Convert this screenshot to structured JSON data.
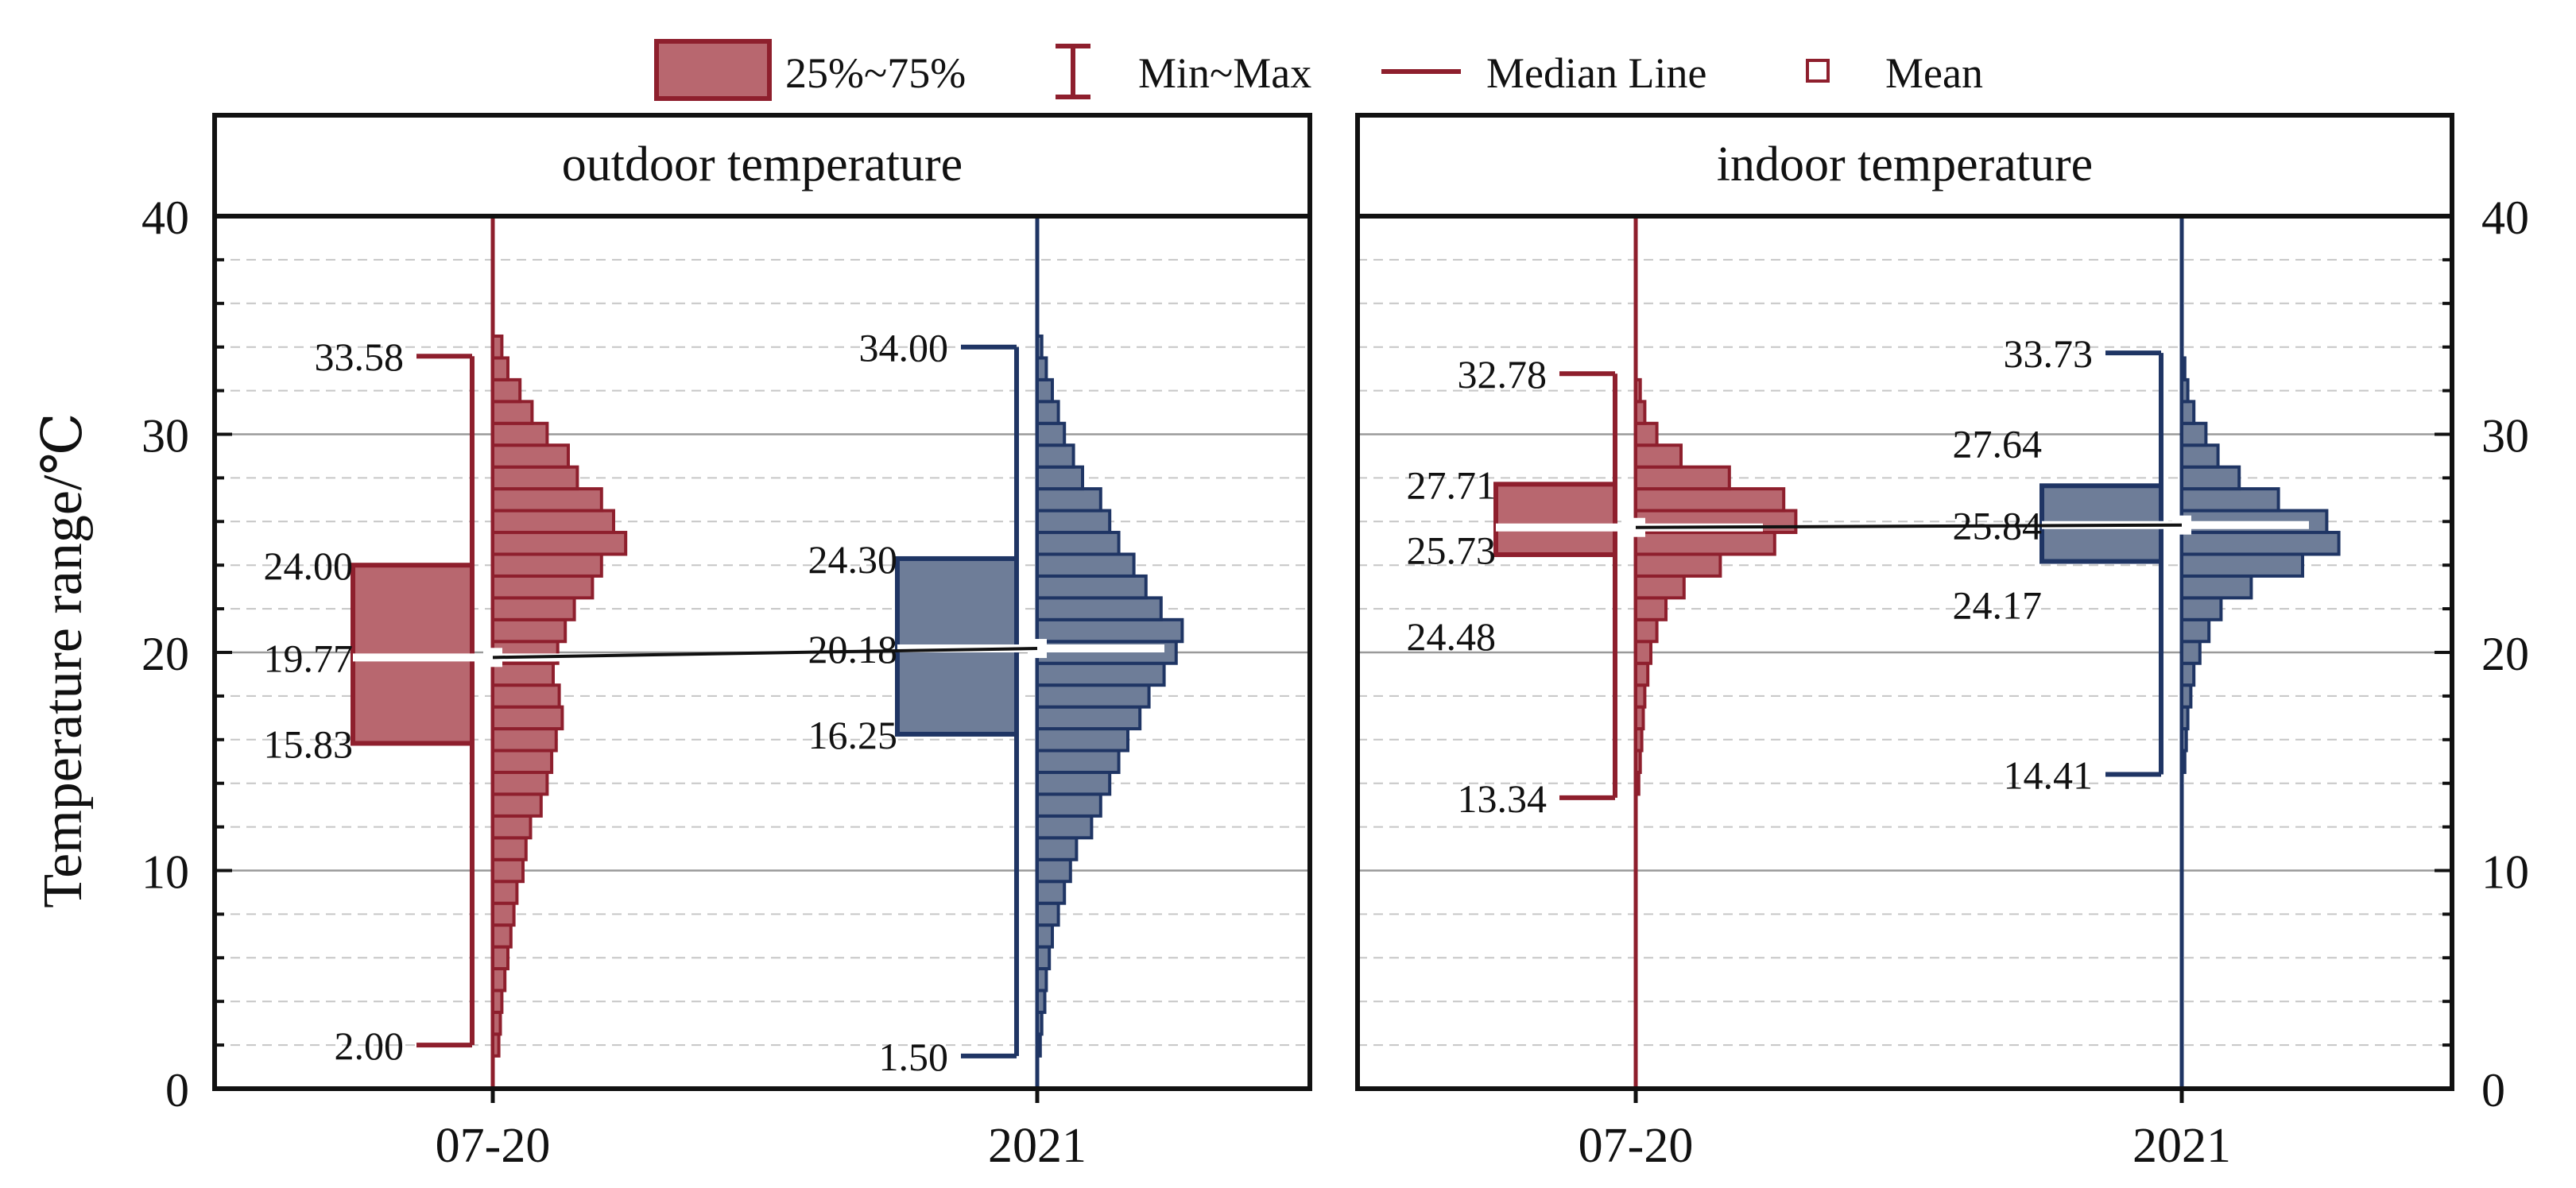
{
  "chart_data": {
    "type": "box-violin-histogram",
    "ylabel": "Temperature range/℃",
    "ylim": [
      0,
      40
    ],
    "yticks": [
      0,
      10,
      20,
      30,
      40
    ],
    "categories": [
      "07-20",
      "2021"
    ],
    "colors": {
      "07-20": {
        "fill": "#b8676f",
        "stroke": "#8e1f2d"
      },
      "2021": {
        "fill": "#6e7d98",
        "stroke": "#1f3564"
      }
    },
    "legend": {
      "box": "25%~75%",
      "whisker": "Min~Max",
      "median": "Median Line",
      "mean": "Mean"
    },
    "panels": [
      {
        "title": "outdoor temperature",
        "series": [
          {
            "category": "07-20",
            "min": 2.0,
            "q1": 15.83,
            "median": 19.77,
            "q3": 24.0,
            "max": 33.58,
            "labels": {
              "min": "2.00",
              "q1": "15.83",
              "median": "19.77",
              "q3": "24.00",
              "max": "33.58"
            },
            "hist_start": 1.5,
            "hist_bin": 1,
            "hist": [
              4,
              5,
              6,
              8,
              10,
              12,
              14,
              16,
              20,
              22,
              25,
              32,
              36,
              39,
              42,
              46,
              44,
              40,
              43,
              48,
              54,
              66,
              72,
              88,
              80,
              72,
              56,
              50,
              36,
              26,
              18,
              10,
              6
            ]
          },
          {
            "category": "2021",
            "min": 1.5,
            "q1": 16.25,
            "median": 20.18,
            "q3": 24.3,
            "max": 34.0,
            "labels": {
              "min": "1.50",
              "q1": "16.25",
              "median": "20.18",
              "q3": "24.30",
              "max": "34.00"
            },
            "hist_start": 1.5,
            "hist_bin": 1,
            "hist": [
              2,
              3,
              5,
              6,
              8,
              10,
              14,
              18,
              22,
              26,
              36,
              42,
              48,
              54,
              60,
              68,
              74,
              84,
              92,
              96,
              82,
              72,
              64,
              54,
              48,
              42,
              30,
              24,
              18,
              14,
              10,
              6,
              3
            ]
          }
        ]
      },
      {
        "title": "indoor temperature",
        "series": [
          {
            "category": "07-20",
            "min": 13.34,
            "q1": 24.48,
            "median": 25.73,
            "q3": 27.71,
            "max": 32.78,
            "labels": {
              "min": "13.34",
              "q1": "24.48",
              "median": "25.73",
              "q3": "27.71",
              "max": "32.78"
            },
            "hist_start": 13.5,
            "hist_bin": 1,
            "hist": [
              2,
              3,
              4,
              5,
              6,
              8,
              10,
              14,
              20,
              32,
              56,
              92,
              106,
              98,
              62,
              30,
              14,
              6,
              3
            ]
          },
          {
            "category": "2021",
            "min": 14.41,
            "q1": 24.17,
            "median": 25.84,
            "q3": 27.64,
            "max": 33.73,
            "labels": {
              "min": "14.41",
              "q1": "24.17",
              "median": "25.84",
              "q3": "27.64",
              "max": "33.73"
            },
            "hist_start": 14.5,
            "hist_bin": 1,
            "hist": [
              2,
              3,
              4,
              6,
              8,
              12,
              18,
              26,
              46,
              80,
              104,
              96,
              64,
              38,
              24,
              16,
              8,
              4,
              2
            ]
          }
        ]
      }
    ]
  }
}
